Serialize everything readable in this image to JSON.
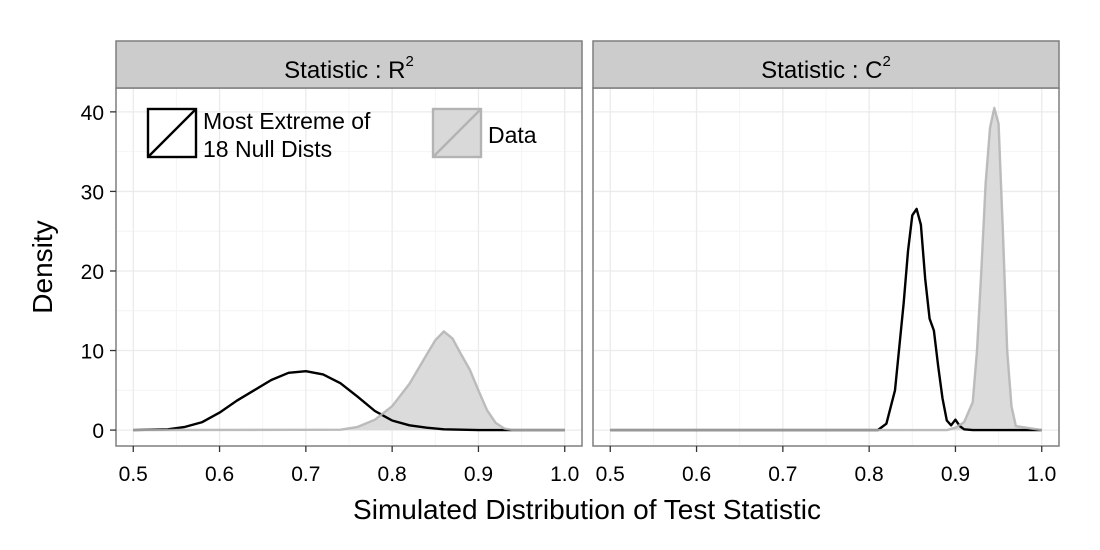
{
  "chart_data": {
    "type": "area",
    "xlabel": "Simulated Distribution of Test Statistic",
    "ylabel": "Density",
    "xlim": [
      0.48,
      1.02
    ],
    "ylim": [
      -2,
      43
    ],
    "x_ticks": [
      "0.5",
      "0.6",
      "0.7",
      "0.8",
      "0.9",
      "1.0"
    ],
    "y_ticks": [
      "0",
      "10",
      "20",
      "30",
      "40"
    ],
    "grid": true,
    "legend": {
      "placement": "top-left inside first panel",
      "entries": [
        {
          "label_lines": [
            "Most Extreme of",
            "18 Null Dists"
          ],
          "style": "black outline, no fill"
        },
        {
          "label_lines": [
            "Data"
          ],
          "style": "light grey fill, grey outline"
        }
      ]
    },
    "colors": {
      "null_line": "#000000",
      "data_line": "#b3b3b3",
      "data_fill": "#d9d9d9",
      "strip": "#cccccc",
      "grid": "#ebebeb",
      "frame": "#7f7f7f"
    },
    "panels": [
      {
        "strip_prefix": "Statistic : R",
        "strip_superscript": "2",
        "series": [
          {
            "name": "Most Extreme of 18 Null Dists",
            "x": [
              0.5,
              0.54,
              0.56,
              0.58,
              0.6,
              0.62,
              0.64,
              0.66,
              0.68,
              0.7,
              0.72,
              0.74,
              0.76,
              0.78,
              0.8,
              0.82,
              0.84,
              0.86,
              0.88,
              0.9,
              1.0
            ],
            "y": [
              0.0,
              0.1,
              0.4,
              1.0,
              2.2,
              3.7,
              5.0,
              6.3,
              7.2,
              7.4,
              7.0,
              5.9,
              4.2,
              2.4,
              1.2,
              0.6,
              0.3,
              0.1,
              0.05,
              0.0,
              0.0
            ]
          },
          {
            "name": "Data",
            "x": [
              0.5,
              0.74,
              0.76,
              0.78,
              0.8,
              0.82,
              0.84,
              0.85,
              0.86,
              0.87,
              0.88,
              0.89,
              0.9,
              0.91,
              0.92,
              0.93,
              0.94,
              1.0
            ],
            "y": [
              0.0,
              0.05,
              0.4,
              1.3,
              3.0,
              5.8,
              9.5,
              11.3,
              12.4,
              11.5,
              9.5,
              7.6,
              5.0,
              2.5,
              0.9,
              0.2,
              0.0,
              0.0
            ]
          }
        ]
      },
      {
        "strip_prefix": "Statistic : C",
        "strip_superscript": "2",
        "series": [
          {
            "name": "Most Extreme of 18 Null Dists",
            "x": [
              0.5,
              0.81,
              0.82,
              0.83,
              0.84,
              0.845,
              0.85,
              0.855,
              0.86,
              0.865,
              0.87,
              0.875,
              0.88,
              0.885,
              0.89,
              0.895,
              0.9,
              0.905,
              0.91,
              0.92,
              1.0
            ],
            "y": [
              0.0,
              0.0,
              0.8,
              5.0,
              16.0,
              22.5,
              27.0,
              27.8,
              25.8,
              19.0,
              14.0,
              12.5,
              8.0,
              4.0,
              1.2,
              0.6,
              1.3,
              0.5,
              0.1,
              0.0,
              0.0
            ]
          },
          {
            "name": "Data",
            "x": [
              0.5,
              0.89,
              0.9,
              0.91,
              0.92,
              0.925,
              0.93,
              0.935,
              0.94,
              0.945,
              0.95,
              0.955,
              0.96,
              0.965,
              0.97,
              1.0
            ],
            "y": [
              0.0,
              0.0,
              0.3,
              1.0,
              3.5,
              10.0,
              20.0,
              31.0,
              38.0,
              40.5,
              38.5,
              25.0,
              10.0,
              3.0,
              0.5,
              0.0
            ]
          }
        ]
      }
    ]
  }
}
